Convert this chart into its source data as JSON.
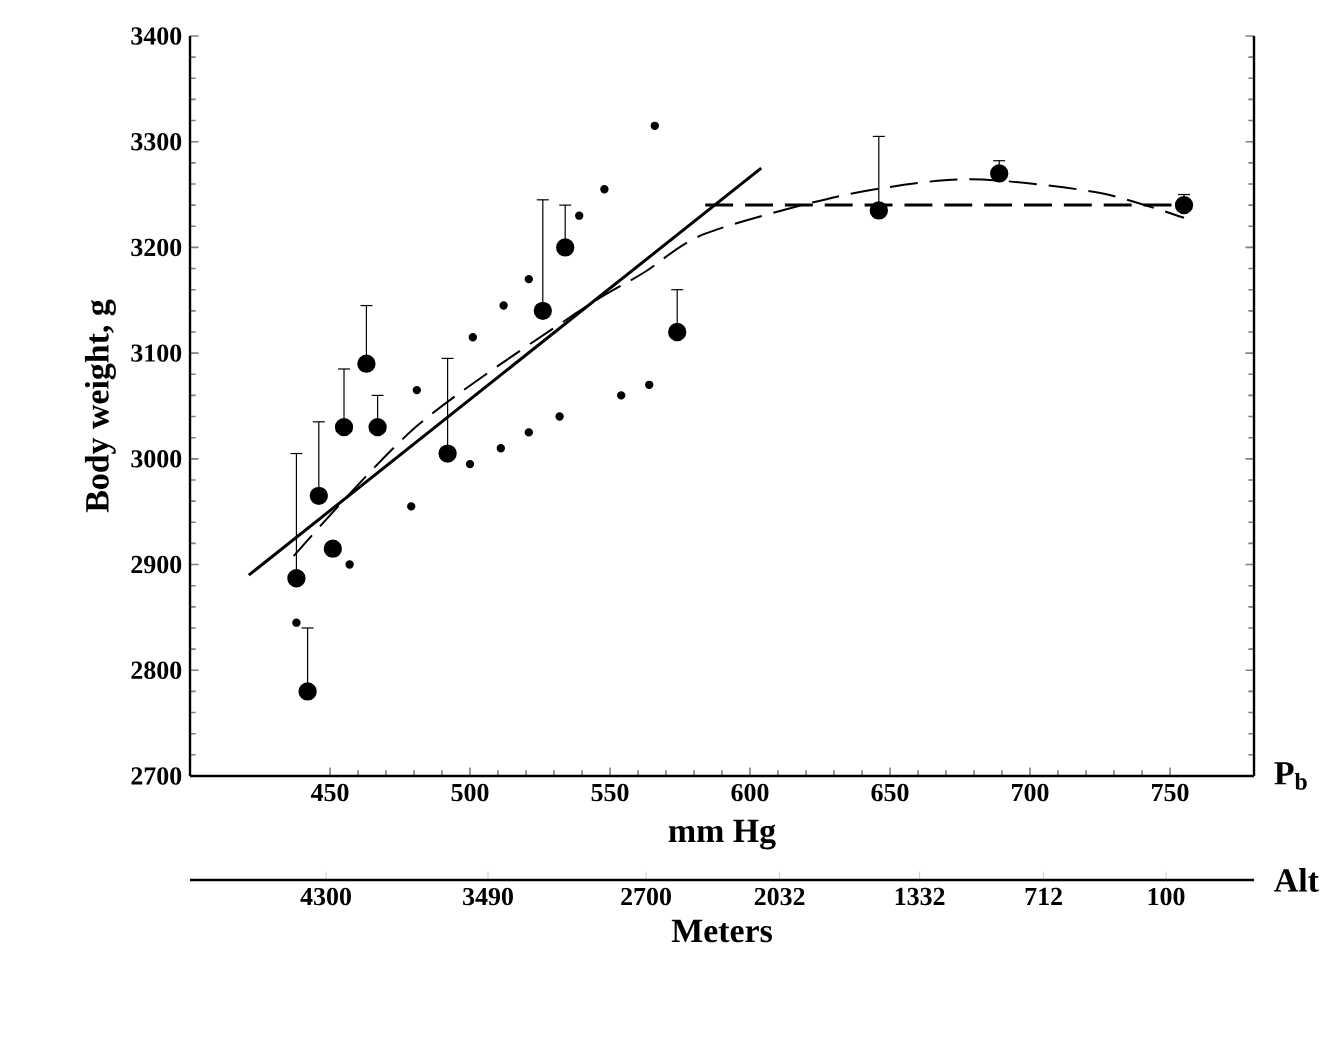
{
  "chart_data": {
    "type": "scatter",
    "xlabel": "mm Hg",
    "ylabel": "Body weight, g",
    "x2label": "Meters",
    "xlim": [
      400,
      780
    ],
    "xticks": [
      450,
      500,
      550,
      600,
      650,
      700,
      750
    ],
    "x2lim": [
      4980,
      -340
    ],
    "x2ticks": [
      4300,
      3490,
      2700,
      2032,
      1332,
      712,
      100
    ],
    "ylim": [
      2700,
      3400
    ],
    "yticks": [
      2700,
      2800,
      2900,
      3000,
      3100,
      3200,
      3300,
      3400
    ],
    "grid": false,
    "annotations": [
      "P$_{b}$",
      "Alt"
    ],
    "series": [
      {
        "color": "#000000",
        "x": [
          438,
          442,
          446,
          451,
          455,
          463,
          467,
          492,
          526,
          534,
          574,
          646,
          689,
          755
        ],
        "values": [
          2887,
          2780,
          2965,
          2915,
          3030,
          3090,
          3030,
          3005,
          3140,
          3200,
          3120,
          3235,
          3270,
          3240
        ],
        "errors": [
          [
            2887,
            3005
          ],
          [
            2780,
            2840
          ],
          [
            2965,
            3035
          ],
          null,
          [
            3030,
            3085
          ],
          [
            3090,
            3145
          ],
          [
            3030,
            3060
          ],
          [
            3005,
            3095
          ],
          [
            3140,
            3245
          ],
          [
            3200,
            3240
          ],
          [
            3120,
            3160
          ],
          [
            3235,
            3305
          ],
          [
            3270,
            3282
          ],
          [
            3240,
            3250
          ]
        ]
      },
      {
        "color": "#000000",
        "x": [
          438,
          457,
          479,
          481,
          500,
          501,
          511,
          512,
          521,
          521,
          532,
          539,
          548,
          554,
          564,
          566
        ],
        "values": [
          2845,
          2900,
          2955,
          3065,
          2995,
          3115,
          3010,
          3145,
          3025,
          3170,
          3040,
          3230,
          3255,
          3060,
          3070,
          3315
        ]
      },
      {
        "type": "line",
        "line_style": "solid",
        "color": "#000000",
        "x": [
          421,
          604
        ],
        "values": [
          2890,
          3275
        ]
      },
      {
        "type": "line",
        "line_style": "dashed",
        "color": "#000000",
        "x": [
          584,
          755
        ],
        "values": [
          3240,
          3240
        ]
      },
      {
        "type": "line",
        "line_style": "dashed",
        "color": "#000000",
        "x": [
          437,
          481,
          538,
          562,
          584,
          631,
          667,
          690,
          726,
          755
        ],
        "values": [
          2908,
          3031,
          3138,
          3176,
          3213,
          3248,
          3263,
          3263,
          3251,
          3228
        ]
      }
    ]
  }
}
